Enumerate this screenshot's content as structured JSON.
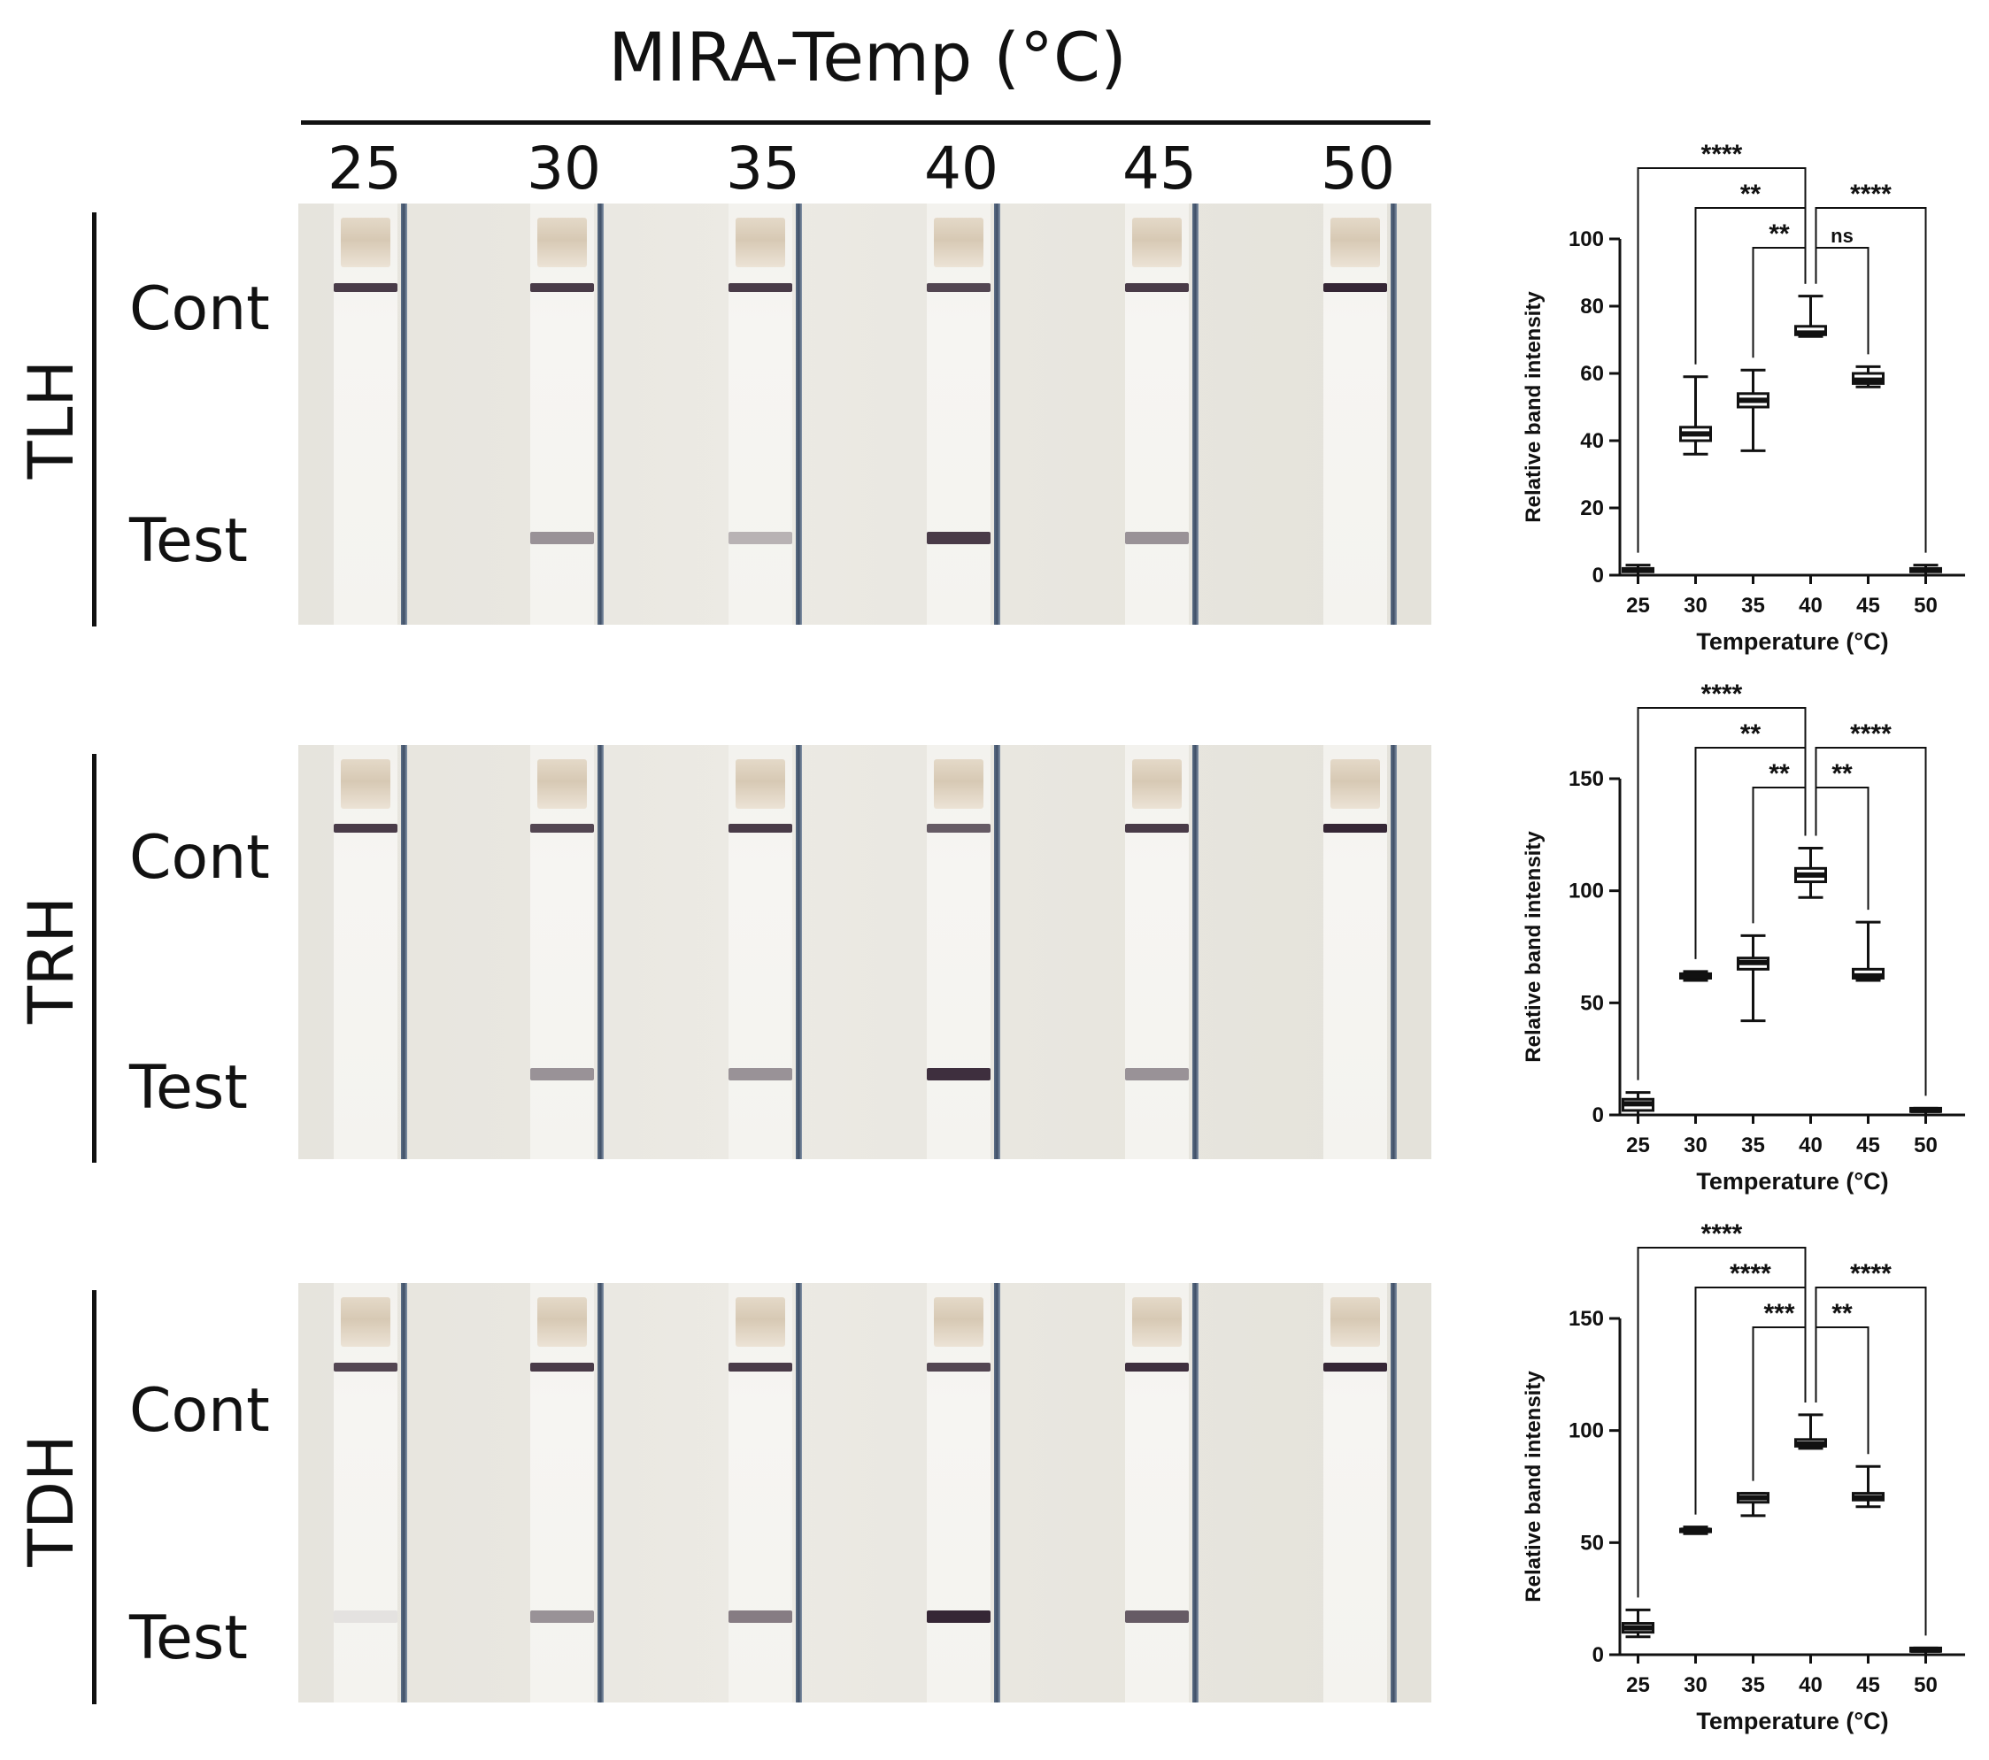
{
  "header": {
    "title": "MIRA-Temp (°C)",
    "temperatures": [
      "25",
      "30",
      "35",
      "40",
      "45",
      "50"
    ]
  },
  "row_labels": {
    "control": "Cont",
    "test": "Test"
  },
  "genes": [
    {
      "name": "TLH",
      "cont_intensity": [
        0.85,
        0.85,
        0.85,
        0.8,
        0.85,
        0.95
      ],
      "test_intensity": [
        0.0,
        0.45,
        0.3,
        0.85,
        0.45,
        0.0
      ]
    },
    {
      "name": "TRH",
      "cont_intensity": [
        0.85,
        0.8,
        0.85,
        0.7,
        0.85,
        0.95
      ],
      "test_intensity": [
        0.0,
        0.45,
        0.45,
        0.9,
        0.45,
        0.0
      ]
    },
    {
      "name": "TDH",
      "cont_intensity": [
        0.8,
        0.85,
        0.85,
        0.8,
        0.9,
        0.95
      ],
      "test_intensity": [
        0.08,
        0.45,
        0.55,
        0.95,
        0.7,
        0.0
      ]
    }
  ],
  "colors": {
    "band": "#2a1a2a",
    "axis": "#111111"
  },
  "chart_data": [
    {
      "type": "box",
      "gene": "TLH",
      "xlabel": "Temperature (°C)",
      "ylabel": "Relative band intensity",
      "categories": [
        "25",
        "30",
        "35",
        "40",
        "45",
        "50"
      ],
      "ylim": [
        0,
        100
      ],
      "yticks": [
        0,
        20,
        40,
        60,
        80,
        100
      ],
      "boxes": [
        {
          "min": 0,
          "q1": 1,
          "median": 1.5,
          "q3": 2,
          "max": 3
        },
        {
          "min": 36,
          "q1": 40,
          "median": 42,
          "q3": 44,
          "max": 59
        },
        {
          "min": 37,
          "q1": 50,
          "median": 52,
          "q3": 54,
          "max": 61
        },
        {
          "min": 71,
          "q1": 71.5,
          "median": 72,
          "q3": 74,
          "max": 83
        },
        {
          "min": 56,
          "q1": 57,
          "median": 58,
          "q3": 60,
          "max": 62
        },
        {
          "min": 0,
          "q1": 1,
          "median": 1.5,
          "q3": 2,
          "max": 3
        }
      ],
      "comparisons": [
        {
          "from": "25",
          "to": "40",
          "label": "****"
        },
        {
          "from": "30",
          "to": "40",
          "label": "**"
        },
        {
          "from": "35",
          "to": "40",
          "label": "**"
        },
        {
          "from": "40",
          "to": "50",
          "label": "****"
        },
        {
          "from": "40",
          "to": "45",
          "label": "ns"
        }
      ]
    },
    {
      "type": "box",
      "gene": "TRH",
      "xlabel": "Temperature (°C)",
      "ylabel": "Relative band intensity",
      "categories": [
        "25",
        "30",
        "35",
        "40",
        "45",
        "50"
      ],
      "ylim": [
        0,
        150
      ],
      "yticks": [
        0,
        50,
        100,
        150
      ],
      "boxes": [
        {
          "min": 0,
          "q1": 2,
          "median": 5,
          "q3": 7,
          "max": 10
        },
        {
          "min": 60,
          "q1": 61,
          "median": 62,
          "q3": 63,
          "max": 64
        },
        {
          "min": 42,
          "q1": 65,
          "median": 68,
          "q3": 70,
          "max": 80
        },
        {
          "min": 97,
          "q1": 104,
          "median": 107,
          "q3": 110,
          "max": 119
        },
        {
          "min": 60,
          "q1": 61,
          "median": 62,
          "q3": 65,
          "max": 86
        },
        {
          "min": 0,
          "q1": 1.5,
          "median": 2,
          "q3": 3,
          "max": 3
        }
      ],
      "comparisons": [
        {
          "from": "25",
          "to": "40",
          "label": "****"
        },
        {
          "from": "30",
          "to": "40",
          "label": "**"
        },
        {
          "from": "35",
          "to": "40",
          "label": "**"
        },
        {
          "from": "40",
          "to": "50",
          "label": "****"
        },
        {
          "from": "40",
          "to": "45",
          "label": "**"
        }
      ]
    },
    {
      "type": "box",
      "gene": "TDH",
      "xlabel": "Temperature (°C)",
      "ylabel": "Relative band intensity",
      "categories": [
        "25",
        "30",
        "35",
        "40",
        "45",
        "50"
      ],
      "ylim": [
        0,
        150
      ],
      "yticks": [
        0,
        50,
        100,
        150
      ],
      "boxes": [
        {
          "min": 8,
          "q1": 10,
          "median": 12,
          "q3": 14,
          "max": 20
        },
        {
          "min": 54,
          "q1": 55,
          "median": 55.5,
          "q3": 56,
          "max": 57
        },
        {
          "min": 62,
          "q1": 68,
          "median": 70,
          "q3": 72,
          "max": 72
        },
        {
          "min": 92,
          "q1": 93,
          "median": 94,
          "q3": 96,
          "max": 107
        },
        {
          "min": 66,
          "q1": 69,
          "median": 70,
          "q3": 72,
          "max": 84
        },
        {
          "min": 0,
          "q1": 1.5,
          "median": 2,
          "q3": 3,
          "max": 3
        }
      ],
      "comparisons": [
        {
          "from": "25",
          "to": "40",
          "label": "****"
        },
        {
          "from": "30",
          "to": "40",
          "label": "****"
        },
        {
          "from": "35",
          "to": "40",
          "label": "***"
        },
        {
          "from": "40",
          "to": "50",
          "label": "****"
        },
        {
          "from": "40",
          "to": "45",
          "label": "**"
        }
      ]
    }
  ]
}
